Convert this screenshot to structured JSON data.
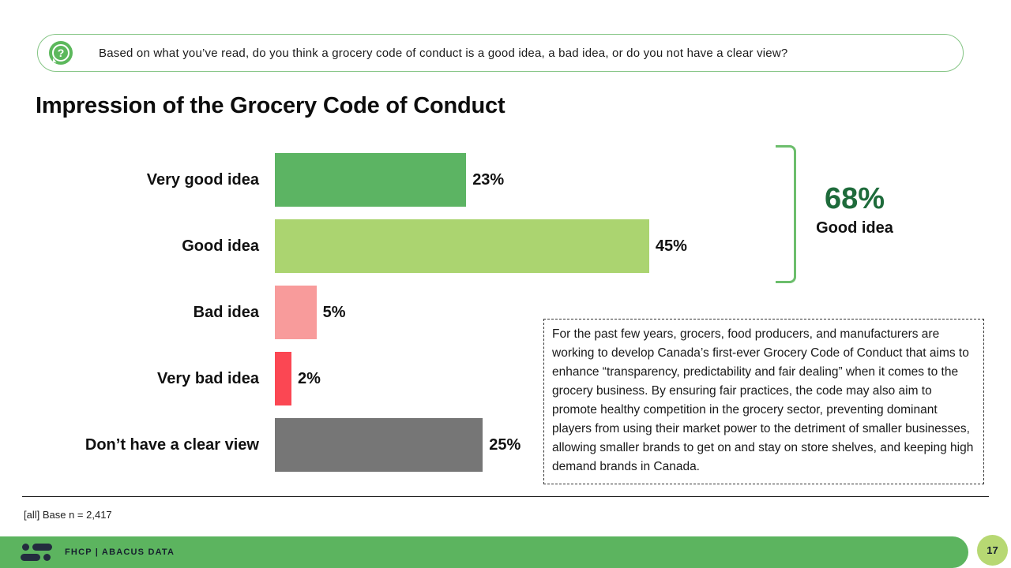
{
  "question_banner": {
    "icon": "question-bubble-icon",
    "icon_glyph": "?",
    "text": "Based on what you’ve read, do you think a grocery code of conduct is a good idea, a bad idea, or do you not have a clear view?"
  },
  "title": "Impression of the Grocery Code of Conduct",
  "chart_data": {
    "type": "bar",
    "orientation": "horizontal",
    "title": "Impression of the Grocery Code of Conduct",
    "categories": [
      "Very good idea",
      "Good idea",
      "Bad idea",
      "Very bad idea",
      "Don’t have a clear view"
    ],
    "values": [
      23,
      45,
      5,
      2,
      25
    ],
    "value_labels": [
      "23%",
      "45%",
      "5%",
      "2%",
      "25%"
    ],
    "bar_colors": [
      "#5cb463",
      "#abd470",
      "#f89b9b",
      "#fb4753",
      "#767676"
    ],
    "xlim": [
      0,
      50
    ],
    "grid": false,
    "legend": false,
    "annotation": {
      "value": "68%",
      "label": "Good idea",
      "covers": [
        "Very good idea",
        "Good idea"
      ]
    }
  },
  "summary_callout": {
    "value": "68%",
    "label": "Good idea",
    "value_color": "#1e6b3b",
    "bracket_color": "#6cbe6c"
  },
  "description_box": {
    "text": "For the past few years, grocers, food producers, and manufacturers are working to develop Canada’s first-ever Grocery Code of Conduct that aims to enhance “transparency, predictability and fair dealing” when it comes to the grocery business. By ensuring fair practices, the code may also aim to promote healthy competition in the grocery sector, preventing dominant players from using their market power to the detriment of smaller businesses, allowing smaller brands to get on and stay on store shelves, and keeping high demand brands in Canada."
  },
  "footnote": "[all] Base n = 2,417",
  "footer": {
    "brand": "FHCP  |  ABACUS DATA",
    "page_number": "17",
    "bar_color": "#5cb45f",
    "page_circle_color": "#b7d873"
  }
}
